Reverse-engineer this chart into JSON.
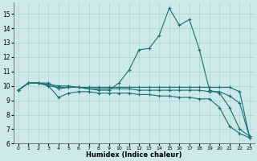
{
  "xlabel": "Humidex (Indice chaleur)",
  "ylabel": "",
  "bg_color": "#cce8e8",
  "line_color": "#1a7070",
  "grid_color": "#aad4d4",
  "xlim": [
    -0.5,
    23.5
  ],
  "ylim": [
    6,
    15.8
  ],
  "yticks": [
    6,
    7,
    8,
    9,
    10,
    11,
    12,
    13,
    14,
    15
  ],
  "xticks": [
    0,
    1,
    2,
    3,
    4,
    5,
    6,
    7,
    8,
    9,
    10,
    11,
    12,
    13,
    14,
    15,
    16,
    17,
    18,
    19,
    20,
    21,
    22,
    23
  ],
  "lines": [
    {
      "x": [
        0,
        1,
        2,
        3,
        4,
        5,
        6,
        7,
        8,
        9,
        10,
        11,
        12,
        13,
        14,
        15,
        16,
        17,
        18,
        19,
        20,
        21,
        22,
        23
      ],
      "y": [
        9.7,
        10.2,
        10.2,
        10.2,
        9.8,
        9.9,
        9.9,
        9.8,
        9.7,
        9.7,
        10.2,
        11.1,
        12.5,
        12.6,
        13.5,
        15.4,
        14.2,
        14.6,
        12.5,
        9.7,
        9.5,
        8.5,
        7.0,
        6.5
      ]
    },
    {
      "x": [
        0,
        1,
        2,
        3,
        4,
        5,
        6,
        7,
        8,
        9,
        10,
        11,
        12,
        13,
        14,
        15,
        16,
        17,
        18,
        19,
        20,
        21,
        22,
        23
      ],
      "y": [
        9.7,
        10.2,
        10.2,
        10.0,
        9.2,
        9.5,
        9.6,
        9.6,
        9.5,
        9.5,
        9.5,
        9.5,
        9.4,
        9.4,
        9.3,
        9.3,
        9.2,
        9.2,
        9.1,
        9.1,
        8.5,
        7.2,
        6.7,
        6.4
      ]
    },
    {
      "x": [
        0,
        1,
        2,
        3,
        4,
        5,
        6,
        7,
        8,
        9,
        10,
        11,
        12,
        13,
        14,
        15,
        16,
        17,
        18,
        19,
        20,
        21,
        22,
        23
      ],
      "y": [
        9.7,
        10.2,
        10.2,
        10.0,
        9.9,
        9.9,
        9.9,
        9.8,
        9.8,
        9.8,
        9.8,
        9.8,
        9.7,
        9.7,
        9.7,
        9.7,
        9.7,
        9.7,
        9.7,
        9.6,
        9.6,
        9.3,
        8.8,
        6.4
      ]
    },
    {
      "x": [
        0,
        1,
        2,
        3,
        4,
        5,
        6,
        7,
        8,
        9,
        10,
        11,
        12,
        13,
        14,
        15,
        16,
        17,
        18,
        19,
        20,
        21,
        22,
        23
      ],
      "y": [
        9.7,
        10.2,
        10.2,
        10.1,
        10.0,
        10.0,
        9.9,
        9.9,
        9.9,
        9.9,
        9.9,
        9.9,
        9.9,
        9.9,
        9.9,
        9.9,
        9.9,
        9.9,
        9.9,
        9.9,
        9.9,
        9.9,
        9.6,
        6.4
      ]
    }
  ]
}
